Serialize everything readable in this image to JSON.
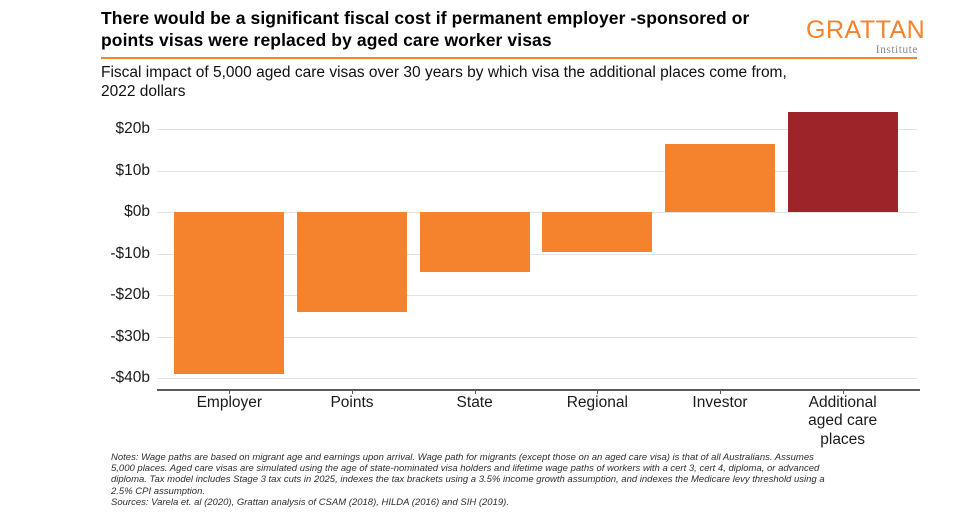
{
  "header": {
    "title": "There would be a significant fiscal cost if permanent employer -sponsored or points visas were replaced by aged care worker visas",
    "title_lines": [
      "There would be a significant fiscal cost if permanent employer -sponsored or",
      "points visas were replaced by aged care worker visas"
    ],
    "subtitle_lines": [
      "Fiscal impact of 5,000 aged care visas over 30 years by which visa the additional places come from,",
      "2022 dollars"
    ],
    "logo": {
      "name": "GRATTAN",
      "sub": "Institute"
    }
  },
  "chart_data": {
    "type": "bar",
    "title": "There would be a significant fiscal cost if permanent employer-sponsored or points visas were replaced by aged care worker visas",
    "subtitle": "Fiscal impact of 5,000 aged care visas over 30 years by which visa the additional places come from, 2022 dollars",
    "categories": [
      "Employer",
      "Points",
      "State",
      "Regional",
      "Investor",
      "Additional aged care places"
    ],
    "values": [
      -39,
      -24,
      -14.5,
      -9.5,
      16.5,
      24
    ],
    "unit": "billions of 2022 dollars",
    "colors": [
      "#F5822D",
      "#F5822D",
      "#F5822D",
      "#F5822D",
      "#F5822D",
      "#9D2428"
    ],
    "y_ticks": [
      20,
      10,
      0,
      -10,
      -20,
      -30,
      -40
    ],
    "y_tick_labels": [
      "$20b",
      "$10b",
      "$0b",
      "-$10b",
      "-$20b",
      "-$30b",
      "-$40b"
    ],
    "ylim": [
      -42.6,
      24.6
    ],
    "xlabel": "",
    "ylabel": "",
    "grid": true,
    "legend": false
  },
  "footer": {
    "notes_lines": [
      "Notes: Wage paths are based on migrant age and earnings upon arrival. Wage path for migrants (except those on an aged care visa) is that of all Australians. Assumes",
      "5,000 places. Aged care visas are simulated using the age of state-nominated visa holders and lifetime wage paths of workers with a cert 3, cert 4, diploma, or advanced",
      "diploma. Tax model includes Stage 3 tax cuts in 2025, indexes the tax brackets using a 3.5% income growth assumption, and indexes the Medicare levy threshold using a",
      "2.5% CPI assumption."
    ],
    "sources": "Sources: Varela et. al (2020), Grattan analysis of CSAM (2018), HILDA (2016) and SIH (2019)."
  },
  "colors": {
    "accent_orange": "#F5822D",
    "highlight_red": "#9D2428",
    "logo_gray": "#8a8a8a",
    "gridline": "#e3e3e3",
    "axis": "#5a5a5a"
  }
}
